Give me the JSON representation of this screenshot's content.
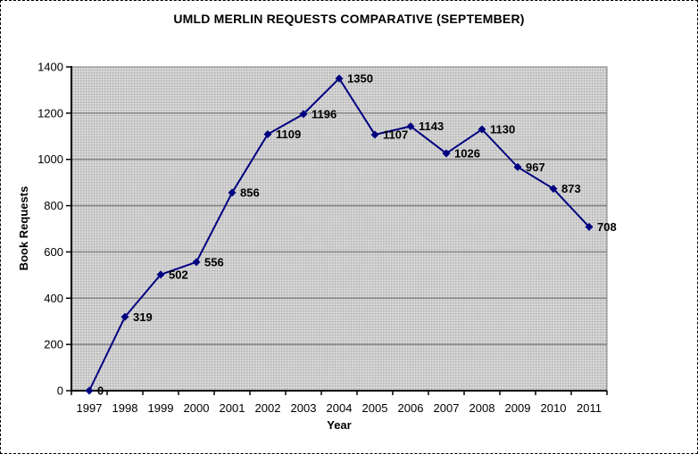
{
  "window": {
    "background": "#ffffff",
    "border_style": "dashed",
    "border_color": "#000000"
  },
  "chart_data": {
    "type": "line",
    "title": "UMLD MERLIN REQUESTS COMPARATIVE (SEPTEMBER)",
    "xlabel": "Year",
    "ylabel": "Book Requests",
    "categories": [
      "1997",
      "1998",
      "1999",
      "2000",
      "2001",
      "2002",
      "2003",
      "2004",
      "2005",
      "2006",
      "2007",
      "2008",
      "2009",
      "2010",
      "2011"
    ],
    "series": [
      {
        "name": "Book Requests",
        "values": [
          0,
          319,
          502,
          556,
          856,
          1109,
          1196,
          1350,
          1107,
          1143,
          1026,
          1130,
          967,
          873,
          708
        ]
      }
    ],
    "data_labels": [
      0,
      319,
      502,
      556,
      856,
      1109,
      1196,
      1350,
      1107,
      1143,
      1026,
      1130,
      967,
      873,
      708
    ],
    "ylim": [
      0,
      1400
    ],
    "ytick_interval": 200,
    "yticks": [
      0,
      200,
      400,
      600,
      800,
      1000,
      1200,
      1400
    ],
    "grid": true,
    "legend_position": "none",
    "marker": "diamond",
    "colors": {
      "line": "#000080",
      "marker": "#000080",
      "gridline": "#808080",
      "axis": "#000000",
      "plot_fill_base": "#d6d6d6",
      "plot_fill_dot": "#a8a8a8",
      "plot_border": "#808080",
      "label_text": "#000000",
      "tick_text": "#000000"
    }
  }
}
